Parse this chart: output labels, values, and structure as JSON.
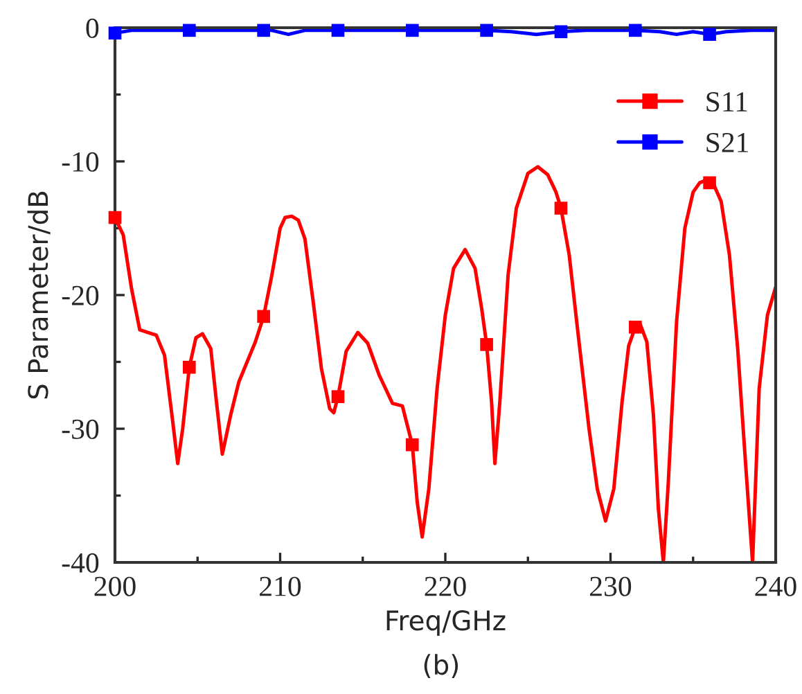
{
  "chart_data": {
    "type": "line",
    "xlabel": "Freq/GHz",
    "ylabel": "S Parameter/dB",
    "xlim": [
      200,
      240
    ],
    "xticks": [
      200,
      210,
      220,
      230,
      240
    ],
    "ylim": [
      -40,
      0
    ],
    "yticks": [
      -40,
      -30,
      -20,
      -10,
      0
    ],
    "legend": "top right",
    "grid": false,
    "annotations": [
      "(b)"
    ],
    "series": [
      {
        "name": "S11",
        "color": "#ff0000",
        "x": [
          200,
          200.5,
          201,
          201.5,
          202,
          202.5,
          203,
          203.5,
          203.8,
          204.1,
          204.5,
          204.9,
          205.3,
          205.8,
          206.1,
          206.5,
          207,
          207.5,
          208,
          208.5,
          209,
          209.5,
          210,
          210.3,
          210.7,
          211.1,
          211.5,
          212,
          212.5,
          213,
          213.25,
          213.5,
          214,
          214.7,
          215.3,
          216,
          216.8,
          217.4,
          218,
          218.3,
          218.6,
          219,
          219.5,
          220,
          220.5,
          221.2,
          221.8,
          222.2,
          222.5,
          222.8,
          223.0,
          223.3,
          223.8,
          224.3,
          225,
          225.6,
          226.2,
          226.7,
          227,
          227.5,
          228,
          228.7,
          229.2,
          229.7,
          230.2,
          230.7,
          231.1,
          231.5,
          231.8,
          232.2,
          232.6,
          232.9,
          233.2,
          233.5,
          234,
          234.5,
          235,
          235.4,
          235.8,
          236.2,
          236.7,
          237.2,
          237.7,
          238.2,
          238.6,
          239,
          239.5,
          240
        ],
        "values": [
          -14.2,
          -15.5,
          -19.5,
          -22.6,
          -22.8,
          -23.0,
          -24.5,
          -29.5,
          -32.6,
          -30.0,
          -25.4,
          -23.2,
          -22.9,
          -24.0,
          -27.5,
          -31.9,
          -29.0,
          -26.5,
          -25.0,
          -23.5,
          -21.6,
          -18.5,
          -15.0,
          -14.2,
          -14.1,
          -14.4,
          -15.8,
          -20.5,
          -25.5,
          -28.5,
          -28.8,
          -27.6,
          -24.2,
          -22.8,
          -23.6,
          -26.0,
          -28.1,
          -28.3,
          -31.2,
          -35.5,
          -38.1,
          -34.5,
          -27.0,
          -21.5,
          -18.0,
          -16.6,
          -18.0,
          -21.0,
          -23.7,
          -28.0,
          -32.6,
          -28.0,
          -18.5,
          -13.5,
          -10.9,
          -10.4,
          -11.0,
          -12.3,
          -13.5,
          -17.0,
          -22.5,
          -30.0,
          -34.5,
          -36.9,
          -34.5,
          -28.0,
          -23.8,
          -22.4,
          -22.2,
          -23.5,
          -29.0,
          -36.0,
          -40,
          -34.0,
          -22.0,
          -15.0,
          -12.3,
          -11.6,
          -11.4,
          -11.6,
          -13.0,
          -17.0,
          -24.0,
          -33.0,
          -40,
          -27.0,
          -21.5,
          -19.4
        ]
      },
      {
        "color": "#ff0000",
        "type": "scatter",
        "marker": "square",
        "x": [
          200,
          204.5,
          209,
          213.5,
          218,
          222.5,
          227,
          231.5,
          236
        ],
        "values": [
          -14.2,
          -25.4,
          -21.6,
          -27.6,
          -31.2,
          -23.7,
          -13.5,
          -22.4,
          -11.6
        ]
      },
      {
        "name": "S21",
        "color": "#0000ff",
        "x": [
          200,
          201,
          202,
          204,
          206,
          208,
          209.5,
          210.5,
          211.5,
          213,
          215,
          217,
          219,
          221,
          222.5,
          224,
          225.5,
          227,
          228.5,
          230,
          231.5,
          233,
          234,
          235,
          236,
          237,
          238.5,
          240
        ],
        "values": [
          -0.4,
          -0.2,
          -0.2,
          -0.2,
          -0.2,
          -0.2,
          -0.2,
          -0.5,
          -0.2,
          -0.2,
          -0.2,
          -0.2,
          -0.2,
          -0.2,
          -0.2,
          -0.3,
          -0.5,
          -0.3,
          -0.2,
          -0.2,
          -0.2,
          -0.3,
          -0.5,
          -0.3,
          -0.5,
          -0.3,
          -0.2,
          -0.2
        ]
      },
      {
        "color": "#0000ff",
        "type": "scatter",
        "marker": "square",
        "x": [
          200,
          204.5,
          209,
          213.5,
          218,
          222.5,
          227,
          231.5,
          236
        ],
        "values": [
          -0.4,
          -0.2,
          -0.2,
          -0.2,
          -0.2,
          -0.2,
          -0.3,
          -0.2,
          -0.5
        ]
      }
    ]
  }
}
